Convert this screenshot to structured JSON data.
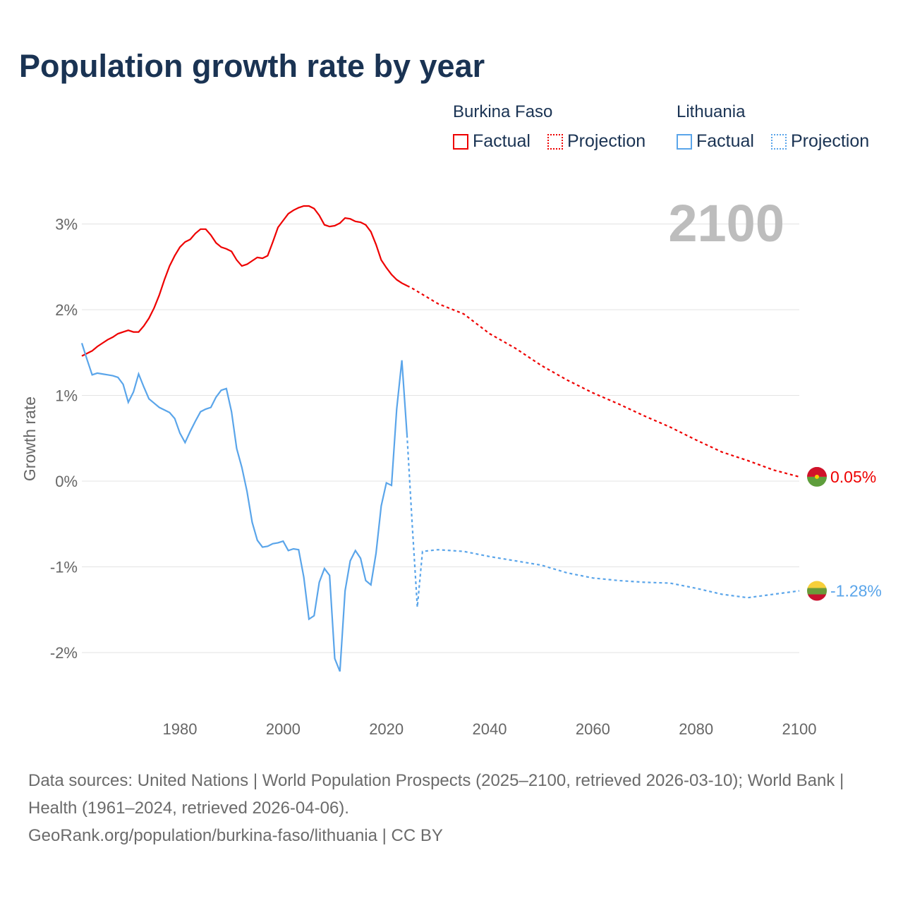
{
  "title": "Population growth rate by year",
  "legend": {
    "groups": [
      {
        "name": "Burkina Faso",
        "factual": "Factual",
        "projection": "Projection",
        "color": "#ee0000"
      },
      {
        "name": "Lithuania",
        "factual": "Factual",
        "projection": "Projection",
        "color": "#5aa5ea"
      }
    ]
  },
  "source": {
    "line1": "Data sources: United Nations | World Population Prospects (2025–2100, retrieved 2026-03-10); World Bank | Health (1961–2024, retrieved 2026-04-06).",
    "line2": "GeoRank.org/population/burkina-faso/lithuania | CC BY"
  },
  "chart_data": {
    "type": "line",
    "title": "Population growth rate by year",
    "xlabel": "",
    "ylabel": "Growth rate",
    "current_year_label": "2100",
    "xlim": [
      1961,
      2100
    ],
    "ylim": [
      -2.6,
      3.6
    ],
    "x_ticks": [
      1980,
      2000,
      2020,
      2040,
      2060,
      2080,
      2100
    ],
    "y_ticks": [
      {
        "v": 3,
        "label": "3%"
      },
      {
        "v": 2,
        "label": "2%"
      },
      {
        "v": 1,
        "label": "1%"
      },
      {
        "v": 0,
        "label": "0%"
      },
      {
        "v": -1,
        "label": "-1%"
      },
      {
        "v": -2,
        "label": "-2%"
      }
    ],
    "grid": true,
    "series": [
      {
        "name": "Burkina Faso",
        "color": "#ee0000",
        "end_label": "0.05%",
        "factual": {
          "x_start": 1961,
          "values": [
            1.46,
            1.49,
            1.52,
            1.57,
            1.61,
            1.65,
            1.68,
            1.72,
            1.74,
            1.76,
            1.74,
            1.74,
            1.81,
            1.9,
            2.02,
            2.17,
            2.35,
            2.51,
            2.63,
            2.73,
            2.79,
            2.82,
            2.89,
            2.94,
            2.94,
            2.87,
            2.78,
            2.73,
            2.71,
            2.68,
            2.58,
            2.51,
            2.53,
            2.57,
            2.61,
            2.6,
            2.63,
            2.79,
            2.96,
            3.04,
            3.12,
            3.16,
            3.19,
            3.21,
            3.21,
            3.18,
            3.1,
            2.99,
            2.97,
            2.98,
            3.01,
            3.07,
            3.06,
            3.03,
            3.02,
            2.99,
            2.91,
            2.76,
            2.58,
            2.49,
            2.41,
            2.35,
            2.31,
            2.28
          ]
        },
        "projection": {
          "x": [
            2024,
            2025,
            2030,
            2035,
            2040,
            2045,
            2050,
            2055,
            2060,
            2065,
            2070,
            2075,
            2080,
            2085,
            2090,
            2095,
            2100
          ],
          "values": [
            2.28,
            2.25,
            2.07,
            1.95,
            1.72,
            1.55,
            1.35,
            1.18,
            1.03,
            0.9,
            0.76,
            0.63,
            0.48,
            0.34,
            0.24,
            0.13,
            0.05
          ]
        }
      },
      {
        "name": "Lithuania",
        "color": "#5aa5ea",
        "end_label": "-1.28%",
        "factual": {
          "x_start": 1961,
          "values": [
            1.61,
            1.42,
            1.24,
            1.26,
            1.25,
            1.24,
            1.23,
            1.21,
            1.13,
            0.92,
            1.04,
            1.25,
            1.1,
            0.96,
            0.91,
            0.86,
            0.83,
            0.8,
            0.73,
            0.56,
            0.45,
            0.58,
            0.7,
            0.81,
            0.84,
            0.86,
            0.98,
            1.06,
            1.08,
            0.81,
            0.38,
            0.16,
            -0.12,
            -0.48,
            -0.69,
            -0.77,
            -0.76,
            -0.73,
            -0.72,
            -0.7,
            -0.81,
            -0.79,
            -0.8,
            -1.12,
            -1.61,
            -1.57,
            -1.18,
            -1.02,
            -1.1,
            -2.07,
            -2.22,
            -1.28,
            -0.93,
            -0.81,
            -0.9,
            -1.16,
            -1.21,
            -0.84,
            -0.29,
            -0.02,
            -0.05,
            0.84,
            1.41,
            0.54
          ]
        },
        "projection": {
          "x": [
            2024,
            2025,
            2026,
            2027,
            2030,
            2035,
            2040,
            2045,
            2050,
            2055,
            2060,
            2065,
            2070,
            2075,
            2080,
            2085,
            2090,
            2095,
            2100
          ],
          "values": [
            0.54,
            -0.5,
            -1.47,
            -0.82,
            -0.8,
            -0.82,
            -0.88,
            -0.93,
            -0.98,
            -1.07,
            -1.13,
            -1.16,
            -1.18,
            -1.19,
            -1.25,
            -1.32,
            -1.36,
            -1.32,
            -1.28
          ]
        }
      }
    ]
  }
}
